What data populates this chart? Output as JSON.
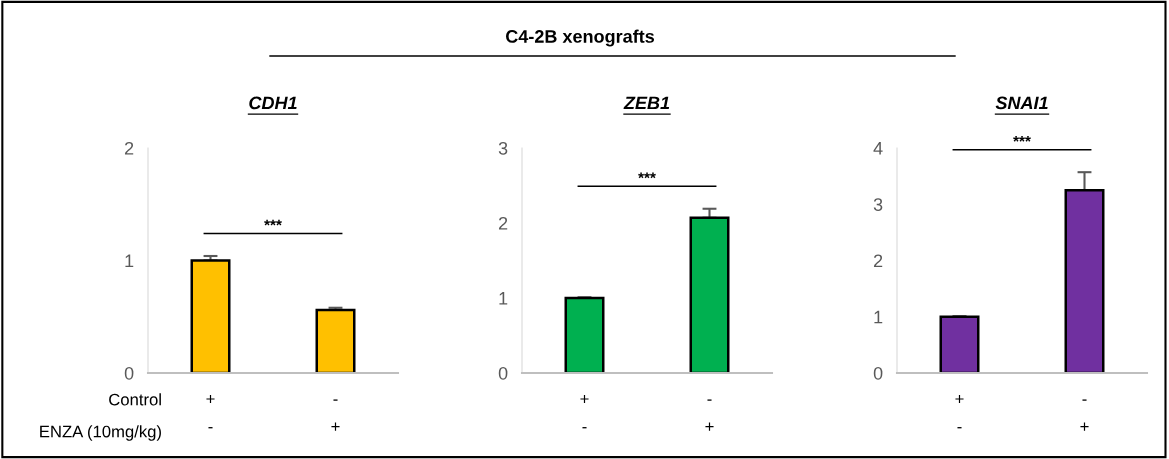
{
  "chart_data": [
    {
      "type": "bar",
      "title": "CDH1",
      "categories": [
        "+\n-",
        "-\n+"
      ],
      "values": [
        1.0,
        0.56
      ],
      "errors": [
        0.04,
        0.02
      ],
      "color": "#ffc000",
      "ylim": [
        0,
        2
      ],
      "yticks": [
        0,
        1,
        2
      ],
      "grid": false,
      "annotations": [
        "***",
        "Control",
        "ENZA (10mg/kg)",
        "C4-2B xenografts"
      ]
    },
    {
      "type": "bar",
      "title": "ZEB1",
      "categories": [
        "+\n-",
        "-\n+"
      ],
      "values": [
        1.0,
        2.07
      ],
      "errors": [
        0.01,
        0.12
      ],
      "color": "#00b050",
      "ylim": [
        0,
        3
      ],
      "yticks": [
        0,
        1,
        2,
        3
      ],
      "grid": false,
      "annotations": [
        "***"
      ]
    },
    {
      "type": "bar",
      "title": "SNAI1",
      "categories": [
        "+\n-",
        "-\n+"
      ],
      "values": [
        1.0,
        3.25
      ],
      "errors": [
        0.01,
        0.32
      ],
      "color": "#7030a0",
      "ylim": [
        0,
        4
      ],
      "yticks": [
        0,
        1,
        2,
        3,
        4
      ],
      "grid": false,
      "annotations": [
        "***"
      ]
    }
  ]
}
